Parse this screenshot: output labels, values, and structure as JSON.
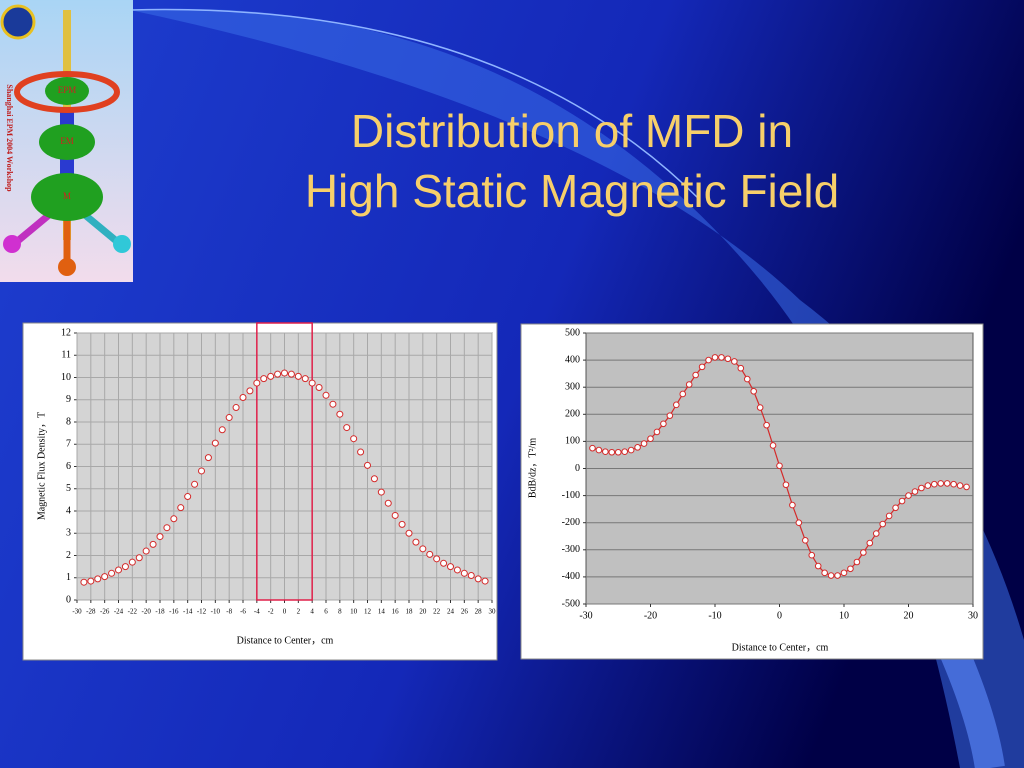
{
  "slide": {
    "title_lines": [
      "Distribution of MFD in",
      "High Static Magnetic Field"
    ],
    "logo": {
      "side_text": "Shanghai EPM 2004 Workshop",
      "labels": [
        "EPM",
        "EM",
        "M"
      ]
    }
  },
  "chart_data": [
    {
      "type": "scatter",
      "x_label": "Distance to Center，cm",
      "y_label": "Magnetic Flux Density，T",
      "x": [
        -29,
        -28,
        -27,
        -26,
        -25,
        -24,
        -23,
        -22,
        -21,
        -20,
        -19,
        -18,
        -17,
        -16,
        -15,
        -14,
        -13,
        -12,
        -11,
        -10,
        -9,
        -8,
        -7,
        -6,
        -5,
        -4,
        -3,
        -2,
        -1,
        0,
        1,
        2,
        3,
        4,
        5,
        6,
        7,
        8,
        9,
        10,
        11,
        12,
        13,
        14,
        15,
        16,
        17,
        18,
        19,
        20,
        21,
        22,
        23,
        24,
        25,
        26,
        27,
        28,
        29
      ],
      "values": [
        0.8,
        0.85,
        0.95,
        1.05,
        1.2,
        1.35,
        1.5,
        1.7,
        1.9,
        2.2,
        2.5,
        2.85,
        3.25,
        3.65,
        4.15,
        4.65,
        5.2,
        5.8,
        6.4,
        7.05,
        7.65,
        8.2,
        8.65,
        9.1,
        9.4,
        9.75,
        9.95,
        10.05,
        10.15,
        10.2,
        10.15,
        10.05,
        9.95,
        9.75,
        9.55,
        9.2,
        8.8,
        8.35,
        7.75,
        7.25,
        6.65,
        6.05,
        5.45,
        4.85,
        4.35,
        3.8,
        3.4,
        3.0,
        2.6,
        2.3,
        2.05,
        1.85,
        1.65,
        1.5,
        1.35,
        1.2,
        1.1,
        0.95,
        0.85
      ],
      "color": "#d42a2a",
      "marker_fill": "#ffffff",
      "line": false,
      "xlim": [
        -30,
        30
      ],
      "ylim": [
        0,
        12
      ],
      "xticks": [
        -30,
        -28,
        -26,
        -24,
        -22,
        -20,
        -18,
        -16,
        -14,
        -12,
        -10,
        -8,
        -6,
        -4,
        -2,
        0,
        2,
        4,
        6,
        8,
        10,
        12,
        14,
        16,
        18,
        20,
        22,
        24,
        26,
        28,
        30
      ],
      "yticks": [
        0,
        1,
        2,
        3,
        4,
        5,
        6,
        7,
        8,
        9,
        10,
        11,
        12
      ],
      "grid": {
        "x": true,
        "y": true
      },
      "plot_background": "#d4d4d4",
      "grid_color": "#a8a8a8",
      "highlight_x": [
        -4,
        4
      ],
      "highlight_color": "#e0204a"
    },
    {
      "type": "line",
      "x_label": "Distance to Center，cm",
      "y_label": "BdB/dz，T²/m",
      "x": [
        -29,
        -28,
        -27,
        -26,
        -25,
        -24,
        -23,
        -22,
        -21,
        -20,
        -19,
        -18,
        -17,
        -16,
        -15,
        -14,
        -13,
        -12,
        -11,
        -10,
        -9,
        -8,
        -7,
        -6,
        -5,
        -4,
        -3,
        -2,
        -1,
        0,
        1,
        2,
        3,
        4,
        5,
        6,
        7,
        8,
        9,
        10,
        11,
        12,
        13,
        14,
        15,
        16,
        17,
        18,
        19,
        20,
        21,
        22,
        23,
        24,
        25,
        26,
        27,
        28,
        29
      ],
      "values": [
        75,
        68,
        62,
        60,
        60,
        62,
        68,
        78,
        92,
        110,
        135,
        165,
        195,
        235,
        275,
        310,
        345,
        375,
        400,
        410,
        410,
        405,
        395,
        370,
        330,
        285,
        225,
        160,
        85,
        10,
        -60,
        -135,
        -200,
        -265,
        -320,
        -360,
        -385,
        -395,
        -395,
        -385,
        -370,
        -345,
        -310,
        -275,
        -240,
        -205,
        -175,
        -145,
        -120,
        -100,
        -85,
        -72,
        -63,
        -58,
        -55,
        -55,
        -58,
        -63,
        -68
      ],
      "color": "#d42a2a",
      "marker_fill": "#ffffff",
      "line": true,
      "xlim": [
        -30,
        30
      ],
      "ylim": [
        -500,
        500
      ],
      "xticks": [
        -30,
        -20,
        -10,
        0,
        10,
        20,
        30
      ],
      "yticks": [
        -500,
        -400,
        -300,
        -200,
        -100,
        0,
        100,
        200,
        300,
        400,
        500
      ],
      "grid": {
        "x": false,
        "y": true
      },
      "plot_background": "#c0c0c0",
      "grid_color": "#777777"
    }
  ]
}
